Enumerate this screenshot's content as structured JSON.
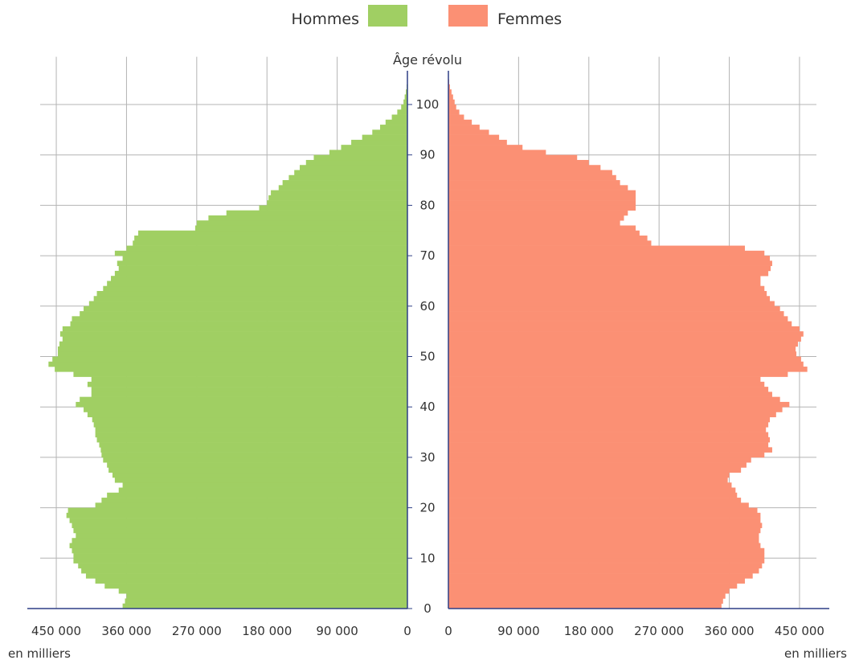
{
  "chart_data": {
    "type": "bar",
    "subtype": "population-pyramid",
    "title": "",
    "ylabel": "Âge révolu",
    "xlabel_left": "en milliers",
    "xlabel_right": "en milliers",
    "x_ticks": [
      0,
      90000,
      180000,
      270000,
      360000,
      450000
    ],
    "x_tick_labels": [
      "0",
      "90 000",
      "180 000",
      "270 000",
      "360 000",
      "450 000"
    ],
    "xlim": [
      0,
      460000
    ],
    "y_ticks": [
      0,
      10,
      20,
      30,
      40,
      50,
      60,
      70,
      80,
      90,
      100
    ],
    "ylim": [
      0,
      105
    ],
    "grid": true,
    "legend_position": "top-center",
    "colors": {
      "hommes": "#a0cf63",
      "femmes": "#fb9074",
      "axis": "#2e3f86",
      "grid": "#b4b4b4"
    },
    "series": [
      {
        "name": "Hommes",
        "values": [
          365000,
          362000,
          360000,
          370000,
          388000,
          400000,
          412000,
          418000,
          422000,
          428000,
          428000,
          430000,
          433000,
          430000,
          425000,
          428000,
          430000,
          433000,
          437000,
          435000,
          400000,
          392000,
          385000,
          370000,
          365000,
          375000,
          378000,
          383000,
          385000,
          390000,
          392000,
          393000,
          395000,
          398000,
          400000,
          400000,
          402000,
          404000,
          410000,
          415000,
          425000,
          420000,
          405000,
          405000,
          410000,
          405000,
          428000,
          452000,
          460000,
          455000,
          448000,
          448000,
          446000,
          442000,
          445000,
          442000,
          432000,
          430000,
          420000,
          415000,
          408000,
          402000,
          398000,
          390000,
          385000,
          380000,
          375000,
          370000,
          372000,
          365000,
          375000,
          360000,
          352000,
          350000,
          345000,
          272000,
          270000,
          255000,
          232000,
          190000,
          180000,
          178000,
          175000,
          165000,
          160000,
          152000,
          145000,
          138000,
          130000,
          120000,
          100000,
          85000,
          72000,
          58000,
          45000,
          35000,
          28000,
          20000,
          13000,
          8000,
          5000,
          3500,
          2000,
          1000,
          500
        ],
        "note_unused": ""
      },
      {
        "name": "Femmes",
        "values": [
          350000,
          352000,
          355000,
          360000,
          370000,
          380000,
          390000,
          398000,
          402000,
          405000,
          405000,
          405000,
          400000,
          398000,
          398000,
          400000,
          402000,
          400000,
          400000,
          396000,
          385000,
          375000,
          370000,
          368000,
          363000,
          358000,
          360000,
          375000,
          382000,
          388000,
          405000,
          415000,
          410000,
          412000,
          410000,
          407000,
          410000,
          412000,
          420000,
          428000,
          437000,
          425000,
          415000,
          410000,
          405000,
          400000,
          435000,
          460000,
          455000,
          452000,
          446000,
          445000,
          448000,
          452000,
          455000,
          450000,
          440000,
          435000,
          430000,
          425000,
          418000,
          412000,
          408000,
          405000,
          400000,
          400000,
          410000,
          413000,
          415000,
          412000,
          405000,
          380000,
          260000,
          255000,
          245000,
          240000,
          220000,
          225000,
          230000,
          240000,
          240000,
          240000,
          240000,
          230000,
          220000,
          215000,
          210000,
          195000,
          180000,
          165000,
          125000,
          95000,
          75000,
          65000,
          52000,
          40000,
          30000,
          20000,
          14000,
          10000,
          8000,
          6000,
          4000,
          2000,
          1000
        ]
      }
    ]
  },
  "legend": {
    "hommes_label": "Hommes",
    "femmes_label": "Femmes"
  }
}
